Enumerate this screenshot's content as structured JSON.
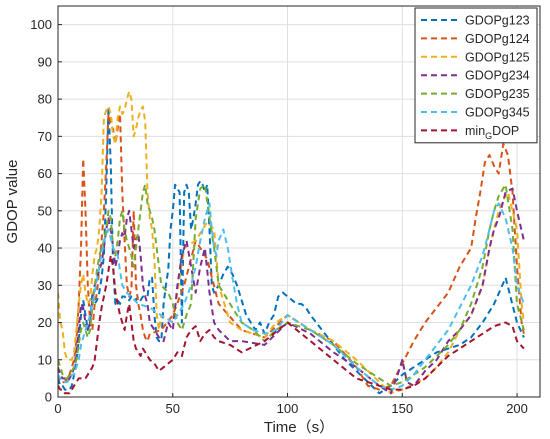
{
  "chart_data": {
    "type": "line",
    "xlabel": "Time（s）",
    "ylabel": "GDOP value",
    "xlim": [
      0,
      210
    ],
    "ylim": [
      0,
      105
    ],
    "xticks": [
      "0",
      "50",
      "100",
      "150",
      "200"
    ],
    "yticks": [
      "0",
      "10",
      "20",
      "30",
      "40",
      "50",
      "60",
      "70",
      "80",
      "90",
      "100"
    ],
    "grid": true,
    "legend_position": "top-right",
    "line_style": "dashed",
    "series": [
      {
        "name": "GDOPg123",
        "color": "#0072BD",
        "x": [
          0,
          1,
          2,
          3,
          4,
          5,
          6,
          7,
          8,
          9,
          10,
          11,
          12,
          13,
          14,
          15,
          16,
          17,
          18,
          19,
          20,
          21,
          22,
          23,
          24,
          25,
          26,
          27,
          28,
          29,
          30,
          31,
          32,
          33,
          34,
          35,
          36,
          37,
          38,
          39,
          40,
          41,
          42,
          43,
          44,
          45,
          46,
          47,
          48,
          49,
          50,
          51,
          52,
          53,
          54,
          55,
          56,
          57,
          58,
          59,
          60,
          61,
          62,
          63,
          64,
          65,
          66,
          67,
          68,
          70,
          72,
          74,
          76,
          78,
          80,
          82,
          84,
          86,
          88,
          90,
          92,
          94,
          96,
          98,
          100,
          102,
          104,
          106,
          108,
          110,
          115,
          120,
          125,
          130,
          135,
          140,
          145,
          150,
          155,
          160,
          165,
          170,
          175,
          180,
          185,
          190,
          195,
          200,
          203
        ],
        "y": [
          5,
          3,
          3,
          2,
          2,
          2,
          3,
          6,
          10,
          15,
          22,
          26,
          22,
          18,
          20,
          28,
          25,
          26,
          28,
          32,
          38,
          55,
          78,
          62,
          35,
          25,
          26,
          25,
          27,
          27,
          26,
          26,
          27,
          27,
          26,
          27,
          26,
          27,
          27,
          27,
          32,
          32,
          22,
          16,
          15,
          15,
          25,
          30,
          34,
          45,
          50,
          57,
          56,
          55,
          20,
          55,
          57,
          55,
          45,
          48,
          52,
          57,
          58,
          57,
          55,
          57,
          45,
          30,
          28,
          30,
          33,
          35,
          33,
          30,
          26,
          22,
          20,
          18,
          20,
          17,
          20,
          22,
          27,
          28,
          27,
          26,
          25,
          25,
          24,
          22,
          18,
          14,
          10,
          7,
          4,
          1,
          3,
          6,
          8,
          10,
          12,
          13,
          14,
          16,
          20,
          25,
          32,
          20,
          16
        ]
      },
      {
        "name": "GDOPg124",
        "color": "#D95319",
        "x": [
          0,
          1,
          2,
          3,
          4,
          5,
          6,
          7,
          8,
          9,
          10,
          11,
          12,
          13,
          14,
          15,
          16,
          17,
          18,
          19,
          20,
          21,
          22,
          23,
          24,
          25,
          26,
          27,
          28,
          29,
          30,
          31,
          32,
          33,
          34,
          35,
          36,
          37,
          38,
          39,
          40,
          45,
          50,
          55,
          60,
          65,
          70,
          80,
          90,
          100,
          110,
          120,
          130,
          135,
          140,
          145,
          150,
          155,
          160,
          165,
          170,
          175,
          180,
          182,
          184,
          186,
          188,
          190,
          192,
          194,
          196,
          198,
          200,
          202,
          203
        ],
        "y": [
          6,
          4,
          4,
          4,
          5,
          6,
          8,
          10,
          15,
          25,
          40,
          64,
          50,
          30,
          20,
          18,
          25,
          28,
          35,
          42,
          50,
          62,
          76,
          73,
          72,
          68,
          72,
          76,
          55,
          42,
          30,
          27,
          29,
          50,
          30,
          25,
          22,
          18,
          16,
          15,
          17,
          18,
          22,
          30,
          42,
          37,
          25,
          18,
          16,
          22,
          18,
          15,
          8,
          3,
          2,
          3,
          9,
          15,
          20,
          24,
          28,
          35,
          40,
          48,
          55,
          63,
          65,
          62,
          60,
          68,
          65,
          55,
          35,
          20,
          17
        ]
      },
      {
        "name": "GDOPg125",
        "color": "#EDB120",
        "x": [
          0,
          1,
          2,
          3,
          4,
          5,
          6,
          7,
          8,
          9,
          10,
          11,
          12,
          13,
          14,
          15,
          16,
          17,
          18,
          19,
          20,
          21,
          22,
          23,
          24,
          25,
          26,
          27,
          28,
          29,
          30,
          31,
          32,
          33,
          34,
          35,
          36,
          37,
          38,
          39,
          40,
          41,
          42,
          43,
          44,
          45,
          50,
          55,
          60,
          65,
          68,
          70,
          75,
          80,
          85,
          90,
          95,
          100,
          105,
          110,
          120,
          130,
          140,
          145,
          150,
          160,
          165,
          170,
          175,
          180,
          185,
          188,
          190,
          192,
          194,
          196,
          198,
          200,
          202,
          203
        ],
        "y": [
          28,
          20,
          18,
          12,
          10,
          10,
          10,
          12,
          18,
          25,
          30,
          33,
          28,
          25,
          26,
          33,
          38,
          40,
          45,
          55,
          75,
          77,
          78,
          76,
          70,
          68,
          75,
          78,
          76,
          77,
          80,
          82,
          80,
          70,
          72,
          75,
          77,
          78,
          74,
          55,
          48,
          45,
          37,
          22,
          18,
          22,
          20,
          40,
          42,
          47,
          45,
          30,
          20,
          18,
          17,
          16,
          20,
          22,
          20,
          18,
          15,
          10,
          4,
          1,
          2,
          5,
          8,
          12,
          18,
          22,
          30,
          40,
          45,
          50,
          53,
          55,
          50,
          45,
          25,
          20
        ]
      },
      {
        "name": "GDOPg234",
        "color": "#7E2F8E",
        "x": [
          0,
          1,
          2,
          3,
          4,
          5,
          6,
          7,
          8,
          9,
          10,
          11,
          12,
          13,
          14,
          15,
          16,
          17,
          18,
          19,
          20,
          21,
          22,
          23,
          24,
          25,
          26,
          27,
          28,
          29,
          30,
          31,
          32,
          33,
          34,
          35,
          36,
          37,
          38,
          39,
          40,
          42,
          44,
          46,
          48,
          50,
          52,
          54,
          56,
          58,
          60,
          62,
          64,
          66,
          68,
          70,
          75,
          80,
          90,
          100,
          110,
          120,
          130,
          140,
          145,
          148,
          150,
          152,
          155,
          160,
          165,
          170,
          175,
          180,
          185,
          188,
          190,
          192,
          195,
          198,
          200,
          203
        ],
        "y": [
          8,
          6,
          5,
          5,
          4,
          5,
          6,
          8,
          12,
          18,
          25,
          24,
          20,
          18,
          20,
          26,
          30,
          32,
          34,
          36,
          40,
          45,
          48,
          45,
          40,
          35,
          38,
          42,
          44,
          43,
          48,
          50,
          45,
          40,
          42,
          44,
          38,
          30,
          27,
          25,
          20,
          18,
          16,
          15,
          20,
          18,
          30,
          38,
          42,
          35,
          28,
          35,
          40,
          28,
          20,
          18,
          15,
          15,
          14,
          20,
          17,
          12,
          8,
          3,
          1,
          6,
          10,
          4,
          3,
          7,
          10,
          15,
          18,
          22,
          30,
          40,
          45,
          48,
          55,
          56,
          50,
          42
        ]
      },
      {
        "name": "GDOPg235",
        "color": "#77AC30",
        "x": [
          0,
          1,
          2,
          3,
          4,
          5,
          6,
          7,
          8,
          9,
          10,
          11,
          12,
          13,
          14,
          15,
          16,
          17,
          18,
          19,
          20,
          21,
          22,
          23,
          24,
          25,
          26,
          27,
          28,
          29,
          30,
          31,
          32,
          33,
          34,
          35,
          36,
          37,
          38,
          39,
          40,
          41,
          42,
          43,
          44,
          45,
          48,
          50,
          52,
          54,
          56,
          58,
          60,
          62,
          64,
          66,
          68,
          70,
          75,
          80,
          85,
          90,
          95,
          100,
          110,
          120,
          130,
          140,
          145,
          150,
          155,
          160,
          165,
          170,
          175,
          180,
          185,
          188,
          190,
          192,
          195,
          198,
          200,
          203
        ],
        "y": [
          10,
          8,
          6,
          5,
          5,
          6,
          7,
          8,
          10,
          14,
          18,
          20,
          18,
          16,
          18,
          24,
          30,
          34,
          38,
          40,
          42,
          45,
          50,
          48,
          40,
          38,
          42,
          48,
          50,
          45,
          42,
          40,
          38,
          35,
          40,
          45,
          50,
          55,
          57,
          52,
          50,
          48,
          45,
          40,
          35,
          30,
          28,
          25,
          20,
          18,
          22,
          25,
          48,
          56,
          57,
          48,
          40,
          30,
          25,
          20,
          18,
          15,
          18,
          20,
          18,
          14,
          9,
          5,
          3,
          4,
          6,
          8,
          11,
          14,
          18,
          25,
          35,
          45,
          50,
          54,
          57,
          45,
          25,
          18
        ]
      },
      {
        "name": "GDOPg345",
        "color": "#4DBEEE",
        "x": [
          0,
          1,
          2,
          3,
          4,
          5,
          6,
          7,
          8,
          9,
          10,
          12,
          14,
          16,
          18,
          20,
          22,
          24,
          26,
          28,
          30,
          35,
          40,
          45,
          50,
          55,
          58,
          60,
          62,
          64,
          65,
          66,
          67,
          68,
          69,
          70,
          72,
          74,
          76,
          78,
          80,
          85,
          90,
          95,
          100,
          105,
          110,
          120,
          130,
          140,
          145,
          150,
          155,
          160,
          165,
          170,
          175,
          180,
          185,
          188,
          190,
          192,
          195,
          198,
          200,
          203
        ],
        "y": [
          6,
          5,
          4,
          4,
          4,
          5,
          6,
          6,
          8,
          10,
          14,
          18,
          22,
          28,
          35,
          42,
          45,
          40,
          38,
          30,
          28,
          25,
          24,
          22,
          20,
          25,
          30,
          35,
          42,
          48,
          50,
          52,
          45,
          40,
          38,
          42,
          45,
          40,
          32,
          25,
          20,
          18,
          17,
          18,
          22,
          20,
          18,
          14,
          8,
          3,
          2,
          3,
          6,
          10,
          14,
          18,
          24,
          30,
          38,
          45,
          50,
          52,
          48,
          40,
          30,
          25
        ]
      },
      {
        "name": "min_G DOP",
        "color": "#A2142F",
        "x": [
          0,
          1,
          2,
          3,
          4,
          5,
          6,
          7,
          8,
          9,
          10,
          11,
          12,
          13,
          14,
          15,
          16,
          17,
          18,
          19,
          20,
          21,
          22,
          23,
          24,
          25,
          26,
          27,
          28,
          29,
          30,
          31,
          32,
          33,
          34,
          35,
          36,
          37,
          38,
          39,
          40,
          42,
          44,
          46,
          48,
          50,
          52,
          54,
          56,
          58,
          60,
          62,
          64,
          66,
          68,
          70,
          75,
          80,
          90,
          100,
          110,
          120,
          130,
          140,
          145,
          150,
          155,
          160,
          165,
          170,
          175,
          180,
          185,
          190,
          195,
          198,
          200,
          203
        ],
        "y": [
          3,
          2,
          2,
          1,
          1,
          1,
          2,
          3,
          4,
          5,
          5,
          5,
          5,
          6,
          7,
          8,
          10,
          15,
          20,
          24,
          27,
          30,
          34,
          38,
          35,
          28,
          25,
          22,
          20,
          18,
          22,
          25,
          20,
          15,
          13,
          12,
          11,
          13,
          12,
          11,
          10,
          9,
          7,
          8,
          9,
          10,
          12,
          11,
          16,
          18,
          19,
          15,
          17,
          18,
          16,
          15,
          14,
          12,
          15,
          20,
          15,
          10,
          5,
          3,
          2,
          2,
          3,
          5,
          8,
          11,
          13,
          15,
          17,
          19,
          20,
          19,
          15,
          13
        ]
      }
    ]
  },
  "legend": {
    "items": [
      {
        "label": "GDOPg123",
        "color": "#0072BD"
      },
      {
        "label": "GDOPg124",
        "color": "#D95319"
      },
      {
        "label": "GDOPg125",
        "color": "#EDB120"
      },
      {
        "label": "GDOPg234",
        "color": "#7E2F8E"
      },
      {
        "label": "GDOPg235",
        "color": "#77AC30"
      },
      {
        "label": "GDOPg345",
        "color": "#4DBEEE"
      },
      {
        "label_main": "min",
        "label_sub": "G",
        "label_tail": "DOP",
        "color": "#A2142F"
      }
    ]
  }
}
